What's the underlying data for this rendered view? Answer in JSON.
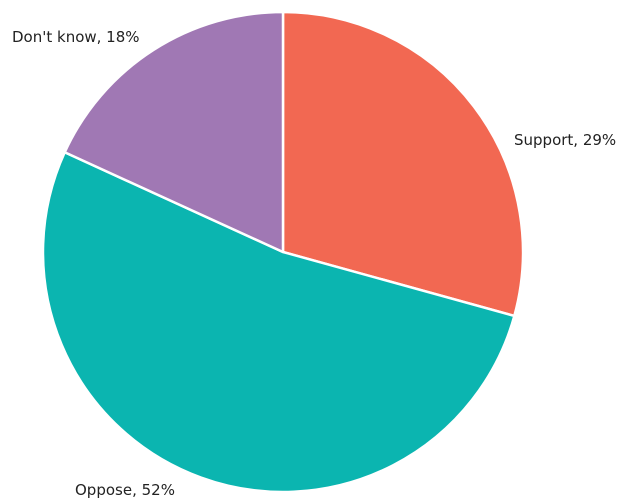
{
  "chart_data": {
    "type": "pie",
    "slices": [
      {
        "label": "Support",
        "value": 29,
        "display": "Support, 29%",
        "color": "#F26852"
      },
      {
        "label": "Oppose",
        "value": 52,
        "display": "Oppose, 52%",
        "color": "#0BB5B0"
      },
      {
        "label": "Don't know",
        "value": 18,
        "display": "Don't know, 18%",
        "color": "#A078B4"
      }
    ],
    "start_angle": "12 o'clock",
    "direction": "clockwise",
    "slice_border_color": "#ffffff"
  }
}
